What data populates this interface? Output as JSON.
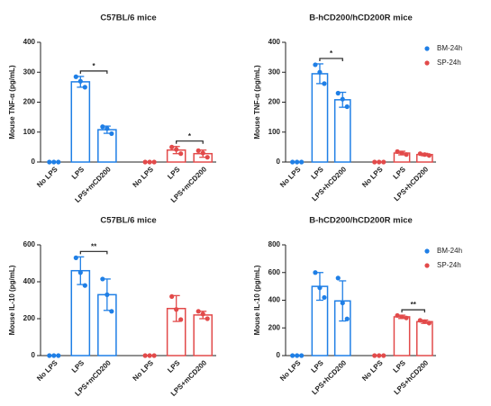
{
  "chart_data": [
    {
      "type": "bar",
      "title": "C57BL/6 mice",
      "ylabel": "Mouse TNF-α (pg/mL)",
      "categories": [
        "No LPS",
        "LPS",
        "LPS+mCD200",
        "No LPS",
        "LPS",
        "LPS+mCD200"
      ],
      "ylim": [
        0,
        400
      ],
      "yticks": [
        0,
        100,
        200,
        300,
        400
      ],
      "series": [
        {
          "color": "#1f7fe6",
          "values": [
            0,
            268,
            108,
            null,
            null,
            null
          ],
          "errors": [
            0,
            18,
            12,
            null,
            null,
            null
          ],
          "points": [
            [
              0,
              0,
              0
            ],
            [
              285,
              270,
              250
            ],
            [
              118,
              112,
              95
            ],
            null,
            null,
            null
          ]
        },
        {
          "color": "#e24a4a",
          "values": [
            null,
            null,
            null,
            0,
            40,
            28
          ],
          "errors": [
            null,
            null,
            null,
            0,
            12,
            12
          ],
          "points": [
            null,
            null,
            null,
            [
              0,
              0,
              0
            ],
            [
              50,
              42,
              28
            ],
            [
              38,
              30,
              16
            ]
          ]
        }
      ],
      "annotations": [
        {
          "label": "*",
          "from": 1,
          "to": 2
        },
        {
          "label": "*",
          "from": 4,
          "to": 5
        }
      ]
    },
    {
      "type": "bar",
      "title": "B-hCD200/hCD200R mice",
      "ylabel": "Mouse TNF-α (pg/mL)",
      "categories": [
        "No LPS",
        "LPS",
        "LPS+hCD200",
        "No LPS",
        "LPS",
        "LPS+hCD200"
      ],
      "ylim": [
        0,
        400
      ],
      "yticks": [
        0,
        100,
        200,
        300,
        400
      ],
      "legend": "upper right",
      "series": [
        {
          "name": "BM-24h",
          "color": "#1f7fe6",
          "values": [
            0,
            295,
            208,
            null,
            null,
            null
          ],
          "errors": [
            0,
            33,
            25,
            null,
            null,
            null
          ],
          "points": [
            [
              0,
              0,
              0
            ],
            [
              325,
              300,
              262
            ],
            [
              230,
              210,
              185
            ],
            null,
            null,
            null
          ]
        },
        {
          "name": "SP-24h",
          "color": "#e24a4a",
          "values": [
            null,
            null,
            null,
            0,
            30,
            25
          ],
          "errors": [
            null,
            null,
            null,
            0,
            6,
            4
          ],
          "points": [
            null,
            null,
            null,
            [
              0,
              0,
              0
            ],
            [
              35,
              30,
              25
            ],
            [
              28,
              25,
              22
            ]
          ]
        }
      ],
      "annotations": [
        {
          "label": "*",
          "from": 1,
          "to": 2
        }
      ]
    },
    {
      "type": "bar",
      "title": "C57BL/6 mice",
      "ylabel": "Mouse IL-10 (pg/mL)",
      "categories": [
        "No LPS",
        "LPS",
        "LPS+mCD200",
        "No LPS",
        "LPS",
        "LPS+mCD200"
      ],
      "ylim": [
        0,
        600
      ],
      "yticks": [
        0,
        200,
        400,
        600
      ],
      "series": [
        {
          "color": "#1f7fe6",
          "values": [
            0,
            460,
            330,
            null,
            null,
            null
          ],
          "errors": [
            0,
            75,
            85,
            null,
            null,
            null
          ],
          "points": [
            [
              0,
              0,
              0
            ],
            [
              530,
              450,
              380
            ],
            [
              415,
              330,
              240
            ],
            null,
            null,
            null
          ]
        },
        {
          "color": "#e24a4a",
          "values": [
            null,
            null,
            null,
            0,
            255,
            220
          ],
          "errors": [
            null,
            null,
            null,
            0,
            70,
            20
          ],
          "points": [
            null,
            null,
            null,
            [
              0,
              0,
              0
            ],
            [
              320,
              250,
              195
            ],
            [
              240,
              225,
              200
            ]
          ]
        }
      ],
      "annotations": [
        {
          "label": "**",
          "from": 1,
          "to": 2
        }
      ]
    },
    {
      "type": "bar",
      "title": "B-hCD200/hCD200R mice",
      "ylabel": "Mouse IL-10 (pg/mL)",
      "categories": [
        "No LPS",
        "LPS",
        "LPS+hCD200",
        "No LPS",
        "LPS",
        "LPS+hCD200"
      ],
      "ylim": [
        0,
        800
      ],
      "yticks": [
        0,
        200,
        400,
        600,
        800
      ],
      "legend": "upper right",
      "series": [
        {
          "name": "BM-24h",
          "color": "#1f7fe6",
          "values": [
            0,
            500,
            395,
            null,
            null,
            null
          ],
          "errors": [
            0,
            100,
            145,
            null,
            null,
            null
          ],
          "points": [
            [
              0,
              0,
              0
            ],
            [
              600,
              490,
              420
            ],
            [
              560,
              380,
              265
            ],
            null,
            null,
            null
          ]
        },
        {
          "name": "SP-24h",
          "color": "#e24a4a",
          "values": [
            null,
            null,
            null,
            0,
            280,
            245
          ],
          "errors": [
            null,
            null,
            null,
            0,
            12,
            12
          ],
          "points": [
            null,
            null,
            null,
            [
              0,
              0,
              0
            ],
            [
              290,
              280,
              272
            ],
            [
              255,
              245,
              235
            ]
          ]
        }
      ],
      "annotations": [
        {
          "label": "**",
          "from": 4,
          "to": 5
        }
      ]
    }
  ]
}
